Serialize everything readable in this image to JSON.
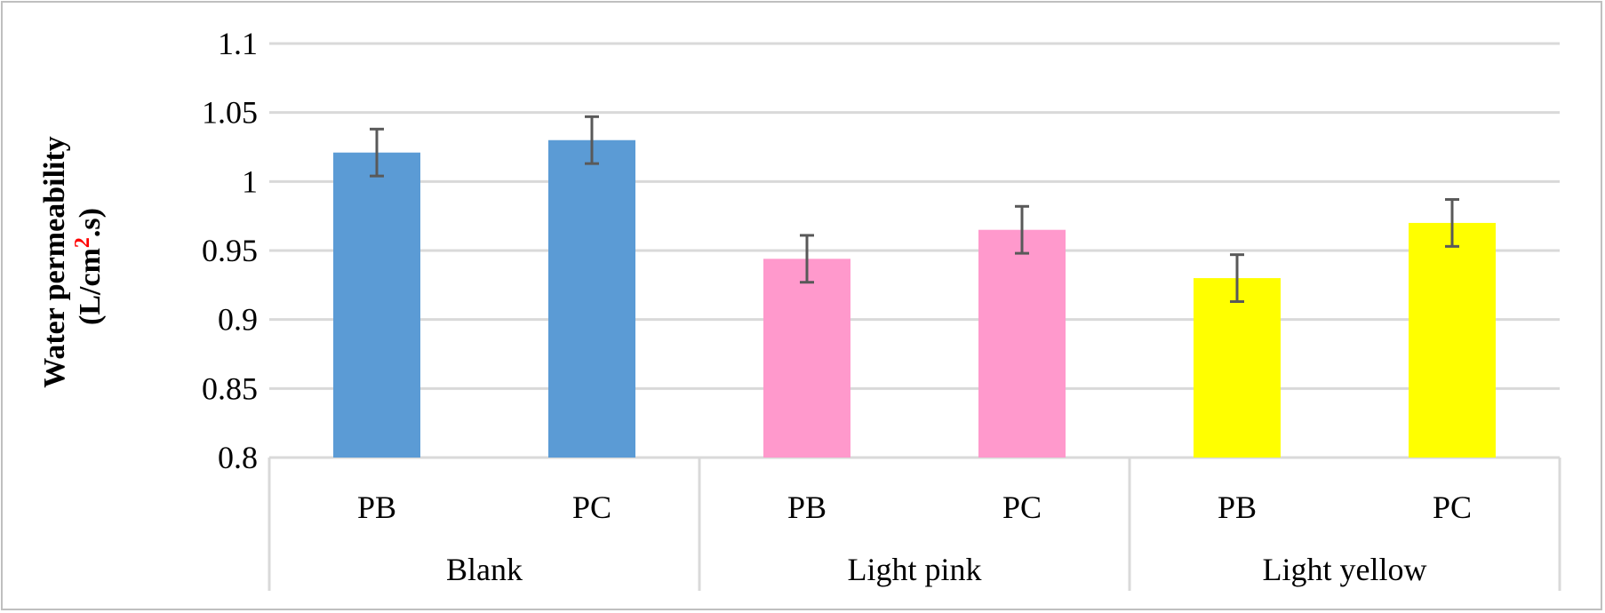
{
  "chart_data": {
    "type": "bar",
    "title": "",
    "ylabel_line1": "Water permeability",
    "ylabel_line2_pre": "(L/cm",
    "ylabel_line2_sup": "2",
    "ylabel_line2_post": ".s)",
    "ylim": [
      0.8,
      1.1
    ],
    "yticks": [
      "0.8",
      "0.85",
      "0.9",
      "0.95",
      "1",
      "1.05",
      "1.1"
    ],
    "ytick_values": [
      0.8,
      0.85,
      0.9,
      0.95,
      1.0,
      1.05,
      1.1
    ],
    "grid": true,
    "groups": [
      {
        "name": "Blank",
        "color": "#5b9bd5",
        "bars": [
          {
            "label": "PB",
            "value": 1.021,
            "error": 0.017
          },
          {
            "label": "PC",
            "value": 1.03,
            "error": 0.017
          }
        ]
      },
      {
        "name": "Light pink",
        "color": "#ff99cc",
        "bars": [
          {
            "label": "PB",
            "value": 0.944,
            "error": 0.017
          },
          {
            "label": "PC",
            "value": 0.965,
            "error": 0.017
          }
        ]
      },
      {
        "name": "Light yellow",
        "color": "#ffff00",
        "bars": [
          {
            "label": "PB",
            "value": 0.93,
            "error": 0.017
          },
          {
            "label": "PC",
            "value": 0.97,
            "error": 0.017
          }
        ]
      }
    ]
  }
}
